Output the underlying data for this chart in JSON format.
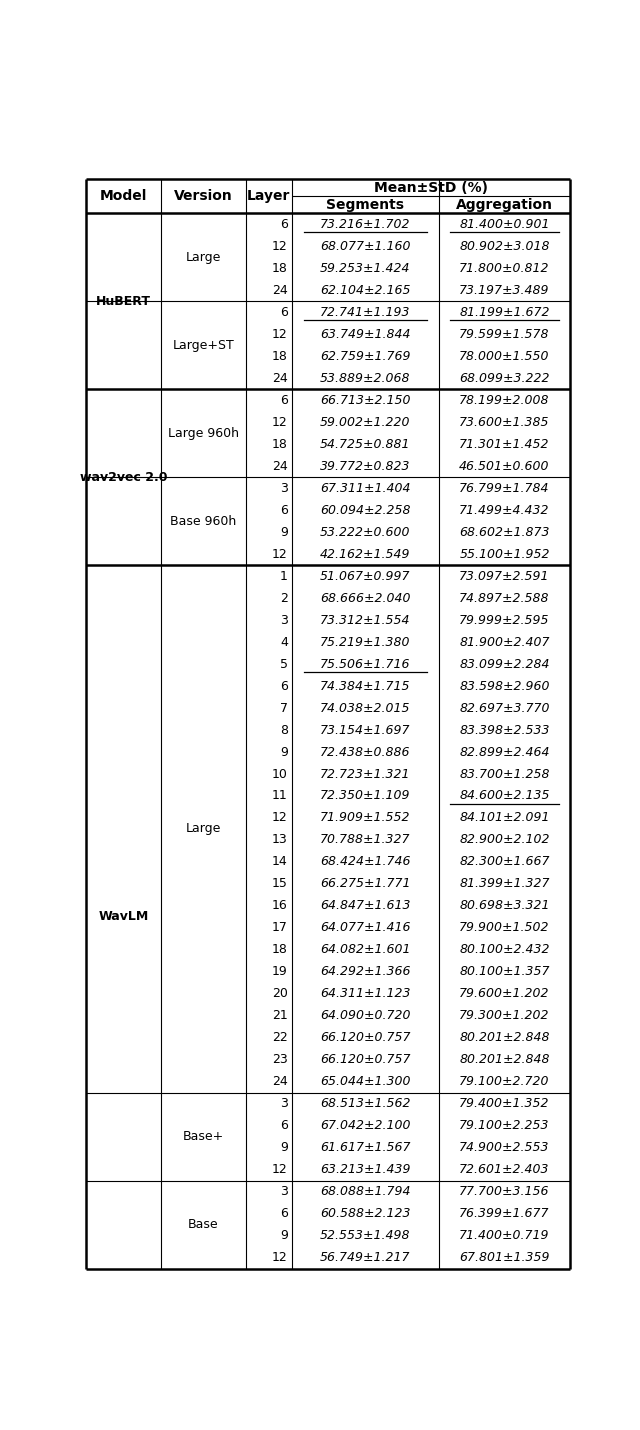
{
  "rows": [
    {
      "model": "HuBERT",
      "version": "Large",
      "layer": "6",
      "segments": "73.216±1.702",
      "aggregation": "81.400±0.901",
      "underline_seg": true,
      "underline_agg": true
    },
    {
      "model": "",
      "version": "",
      "layer": "12",
      "segments": "68.077±1.160",
      "aggregation": "80.902±3.018",
      "underline_seg": false,
      "underline_agg": false
    },
    {
      "model": "",
      "version": "",
      "layer": "18",
      "segments": "59.253±1.424",
      "aggregation": "71.800±0.812",
      "underline_seg": false,
      "underline_agg": false
    },
    {
      "model": "",
      "version": "",
      "layer": "24",
      "segments": "62.104±2.165",
      "aggregation": "73.197±3.489",
      "underline_seg": false,
      "underline_agg": false
    },
    {
      "model": "",
      "version": "Large+ST",
      "layer": "6",
      "segments": "72.741±1.193",
      "aggregation": "81.199±1.672",
      "underline_seg": true,
      "underline_agg": true
    },
    {
      "model": "",
      "version": "",
      "layer": "12",
      "segments": "63.749±1.844",
      "aggregation": "79.599±1.578",
      "underline_seg": false,
      "underline_agg": false
    },
    {
      "model": "",
      "version": "",
      "layer": "18",
      "segments": "62.759±1.769",
      "aggregation": "78.000±1.550",
      "underline_seg": false,
      "underline_agg": false
    },
    {
      "model": "",
      "version": "",
      "layer": "24",
      "segments": "53.889±2.068",
      "aggregation": "68.099±3.222",
      "underline_seg": false,
      "underline_agg": false
    },
    {
      "model": "wav2vec 2.0",
      "version": "Large 960h",
      "layer": "6",
      "segments": "66.713±2.150",
      "aggregation": "78.199±2.008",
      "underline_seg": false,
      "underline_agg": false
    },
    {
      "model": "",
      "version": "",
      "layer": "12",
      "segments": "59.002±1.220",
      "aggregation": "73.600±1.385",
      "underline_seg": false,
      "underline_agg": false
    },
    {
      "model": "",
      "version": "",
      "layer": "18",
      "segments": "54.725±0.881",
      "aggregation": "71.301±1.452",
      "underline_seg": false,
      "underline_agg": false
    },
    {
      "model": "",
      "version": "",
      "layer": "24",
      "segments": "39.772±0.823",
      "aggregation": "46.501±0.600",
      "underline_seg": false,
      "underline_agg": false
    },
    {
      "model": "",
      "version": "Base 960h",
      "layer": "3",
      "segments": "67.311±1.404",
      "aggregation": "76.799±1.784",
      "underline_seg": false,
      "underline_agg": false
    },
    {
      "model": "",
      "version": "",
      "layer": "6",
      "segments": "60.094±2.258",
      "aggregation": "71.499±4.432",
      "underline_seg": false,
      "underline_agg": false
    },
    {
      "model": "",
      "version": "",
      "layer": "9",
      "segments": "53.222±0.600",
      "aggregation": "68.602±1.873",
      "underline_seg": false,
      "underline_agg": false
    },
    {
      "model": "",
      "version": "",
      "layer": "12",
      "segments": "42.162±1.549",
      "aggregation": "55.100±1.952",
      "underline_seg": false,
      "underline_agg": false
    },
    {
      "model": "WavLM",
      "version": "Large",
      "layer": "1",
      "segments": "51.067±0.997",
      "aggregation": "73.097±2.591",
      "underline_seg": false,
      "underline_agg": false
    },
    {
      "model": "",
      "version": "",
      "layer": "2",
      "segments": "68.666±2.040",
      "aggregation": "74.897±2.588",
      "underline_seg": false,
      "underline_agg": false
    },
    {
      "model": "",
      "version": "",
      "layer": "3",
      "segments": "73.312±1.554",
      "aggregation": "79.999±2.595",
      "underline_seg": false,
      "underline_agg": false
    },
    {
      "model": "",
      "version": "",
      "layer": "4",
      "segments": "75.219±1.380",
      "aggregation": "81.900±2.407",
      "underline_seg": false,
      "underline_agg": false
    },
    {
      "model": "",
      "version": "",
      "layer": "5",
      "segments": "75.506±1.716",
      "aggregation": "83.099±2.284",
      "underline_seg": true,
      "underline_agg": false
    },
    {
      "model": "",
      "version": "",
      "layer": "6",
      "segments": "74.384±1.715",
      "aggregation": "83.598±2.960",
      "underline_seg": false,
      "underline_agg": false
    },
    {
      "model": "",
      "version": "",
      "layer": "7",
      "segments": "74.038±2.015",
      "aggregation": "82.697±3.770",
      "underline_seg": false,
      "underline_agg": false
    },
    {
      "model": "",
      "version": "",
      "layer": "8",
      "segments": "73.154±1.697",
      "aggregation": "83.398±2.533",
      "underline_seg": false,
      "underline_agg": false
    },
    {
      "model": "",
      "version": "",
      "layer": "9",
      "segments": "72.438±0.886",
      "aggregation": "82.899±2.464",
      "underline_seg": false,
      "underline_agg": false
    },
    {
      "model": "",
      "version": "",
      "layer": "10",
      "segments": "72.723±1.321",
      "aggregation": "83.700±1.258",
      "underline_seg": false,
      "underline_agg": false
    },
    {
      "model": "",
      "version": "",
      "layer": "11",
      "segments": "72.350±1.109",
      "aggregation": "84.600±2.135",
      "underline_seg": false,
      "underline_agg": true
    },
    {
      "model": "",
      "version": "",
      "layer": "12",
      "segments": "71.909±1.552",
      "aggregation": "84.101±2.091",
      "underline_seg": false,
      "underline_agg": false
    },
    {
      "model": "",
      "version": "",
      "layer": "13",
      "segments": "70.788±1.327",
      "aggregation": "82.900±2.102",
      "underline_seg": false,
      "underline_agg": false
    },
    {
      "model": "",
      "version": "",
      "layer": "14",
      "segments": "68.424±1.746",
      "aggregation": "82.300±1.667",
      "underline_seg": false,
      "underline_agg": false
    },
    {
      "model": "",
      "version": "",
      "layer": "15",
      "segments": "66.275±1.771",
      "aggregation": "81.399±1.327",
      "underline_seg": false,
      "underline_agg": false
    },
    {
      "model": "",
      "version": "",
      "layer": "16",
      "segments": "64.847±1.613",
      "aggregation": "80.698±3.321",
      "underline_seg": false,
      "underline_agg": false
    },
    {
      "model": "",
      "version": "",
      "layer": "17",
      "segments": "64.077±1.416",
      "aggregation": "79.900±1.502",
      "underline_seg": false,
      "underline_agg": false
    },
    {
      "model": "",
      "version": "",
      "layer": "18",
      "segments": "64.082±1.601",
      "aggregation": "80.100±2.432",
      "underline_seg": false,
      "underline_agg": false
    },
    {
      "model": "",
      "version": "",
      "layer": "19",
      "segments": "64.292±1.366",
      "aggregation": "80.100±1.357",
      "underline_seg": false,
      "underline_agg": false
    },
    {
      "model": "",
      "version": "",
      "layer": "20",
      "segments": "64.311±1.123",
      "aggregation": "79.600±1.202",
      "underline_seg": false,
      "underline_agg": false
    },
    {
      "model": "",
      "version": "",
      "layer": "21",
      "segments": "64.090±0.720",
      "aggregation": "79.300±1.202",
      "underline_seg": false,
      "underline_agg": false
    },
    {
      "model": "",
      "version": "",
      "layer": "22",
      "segments": "66.120±0.757",
      "aggregation": "80.201±2.848",
      "underline_seg": false,
      "underline_agg": false
    },
    {
      "model": "",
      "version": "",
      "layer": "23",
      "segments": "66.120±0.757",
      "aggregation": "80.201±2.848",
      "underline_seg": false,
      "underline_agg": false
    },
    {
      "model": "",
      "version": "",
      "layer": "24",
      "segments": "65.044±1.300",
      "aggregation": "79.100±2.720",
      "underline_seg": false,
      "underline_agg": false
    },
    {
      "model": "",
      "version": "Base+",
      "layer": "3",
      "segments": "68.513±1.562",
      "aggregation": "79.400±1.352",
      "underline_seg": false,
      "underline_agg": false
    },
    {
      "model": "",
      "version": "",
      "layer": "6",
      "segments": "67.042±2.100",
      "aggregation": "79.100±2.253",
      "underline_seg": false,
      "underline_agg": false
    },
    {
      "model": "",
      "version": "",
      "layer": "9",
      "segments": "61.617±1.567",
      "aggregation": "74.900±2.553",
      "underline_seg": false,
      "underline_agg": false
    },
    {
      "model": "",
      "version": "",
      "layer": "12",
      "segments": "63.213±1.439",
      "aggregation": "72.601±2.403",
      "underline_seg": false,
      "underline_agg": false
    },
    {
      "model": "",
      "version": "Base",
      "layer": "3",
      "segments": "68.088±1.794",
      "aggregation": "77.700±3.156",
      "underline_seg": false,
      "underline_agg": false
    },
    {
      "model": "",
      "version": "",
      "layer": "6",
      "segments": "60.588±2.123",
      "aggregation": "76.399±1.677",
      "underline_seg": false,
      "underline_agg": false
    },
    {
      "model": "",
      "version": "",
      "layer": "9",
      "segments": "52.553±1.498",
      "aggregation": "71.400±0.719",
      "underline_seg": false,
      "underline_agg": false
    },
    {
      "model": "",
      "version": "",
      "layer": "12",
      "segments": "56.749±1.217",
      "aggregation": "67.801±1.359",
      "underline_seg": false,
      "underline_agg": false
    }
  ],
  "model_spans": [
    {
      "model": "HuBERT",
      "start": 0,
      "end": 7
    },
    {
      "model": "wav2vec 2.0",
      "start": 8,
      "end": 15
    },
    {
      "model": "WavLM",
      "start": 16,
      "end": 47
    }
  ],
  "version_spans": [
    {
      "version": "Large",
      "start": 0,
      "end": 3
    },
    {
      "version": "Large+ST",
      "start": 4,
      "end": 7
    },
    {
      "version": "Large 960h",
      "start": 8,
      "end": 11
    },
    {
      "version": "Base 960h",
      "start": 12,
      "end": 15
    },
    {
      "version": "Large",
      "start": 16,
      "end": 39
    },
    {
      "version": "Base+",
      "start": 40,
      "end": 43
    },
    {
      "version": "Base",
      "start": 44,
      "end": 47
    }
  ],
  "model_boundaries": [
    7,
    15
  ],
  "version_boundaries": [
    3,
    11,
    39,
    43
  ],
  "bg_color": "#ffffff",
  "font_size": 9.0,
  "header_font_size": 10.0
}
